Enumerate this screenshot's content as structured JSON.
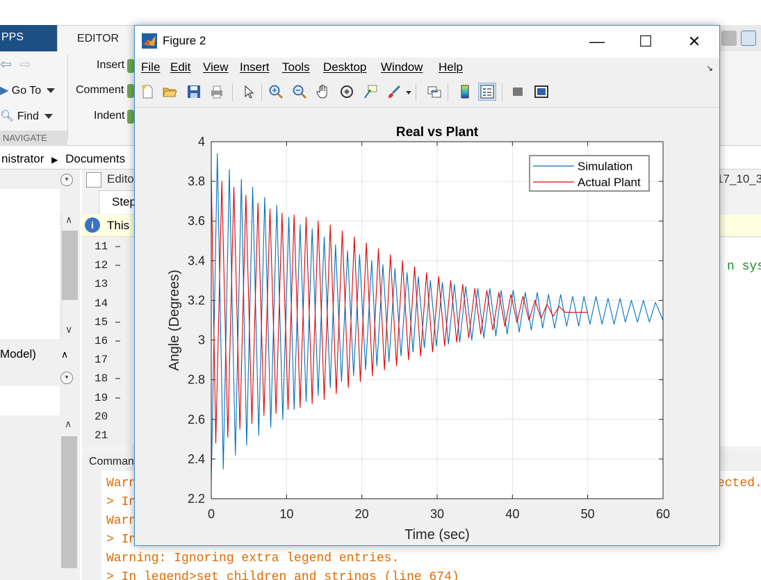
{
  "matlab": {
    "tabs": {
      "apps": "PPS",
      "editor": "EDITOR"
    },
    "ribbon": {
      "goto": "Go To",
      "find": "Find",
      "insert": "Insert",
      "comment": "Comment",
      "indent": "Indent",
      "navigate": "NAVIGATE"
    },
    "address": {
      "segment1": "nistrator",
      "segment2": "Documents"
    },
    "editor": {
      "tab_prefix": "Edito",
      "file_tab": "Step",
      "info_text": "This",
      "right_filename": "17_10_3",
      "right_code": "n sys",
      "line_numbers": [
        "11",
        "12",
        "13",
        "14",
        "15",
        "16",
        "17",
        "18",
        "19",
        "20",
        "21"
      ]
    },
    "left_panel": {
      "model_label": "Model)"
    },
    "command_window": {
      "title": "Comman",
      "lines": [
        {
          "text": "Warn",
          "kind": "warn"
        },
        {
          "text": "> In",
          "kind": "warn"
        },
        {
          "text": "Warn",
          "kind": "warn"
        },
        {
          "text": "> In",
          "kind": "warn"
        },
        {
          "text": "Warning: Ignoring extra legend entries.",
          "kind": "warn"
        },
        {
          "text": "> In legend>set_children_and_strings (line 674)",
          "kind": "warn"
        }
      ],
      "right_fragment": "ected."
    }
  },
  "figure": {
    "title": "Figure 2",
    "window_controls": {
      "minimize": "—",
      "maximize": "☐",
      "close": "✕"
    },
    "menu": [
      "File",
      "Edit",
      "View",
      "Insert",
      "Tools",
      "Desktop",
      "Window",
      "Help"
    ],
    "toolbar_icons": [
      "new-figure-icon",
      "open-file-icon",
      "save-icon",
      "print-icon",
      "select-arrow-icon",
      "zoom-in-icon",
      "zoom-out-icon",
      "pan-icon",
      "rotate-3d-icon",
      "data-cursor-icon",
      "brush-icon",
      "link-plot-icon",
      "colorbar-icon",
      "legend-icon",
      "hide-plot-tools-icon",
      "show-plot-tools-icon"
    ]
  },
  "chart_data": {
    "type": "line",
    "title": "Real vs Plant",
    "xlabel": "Time (sec)",
    "ylabel": "Angle (Degrees)",
    "xlim": [
      0,
      60
    ],
    "ylim": [
      2.2,
      4
    ],
    "xticks": [
      "0",
      "10",
      "20",
      "30",
      "40",
      "50",
      "60"
    ],
    "yticks": [
      "2.2",
      "2.4",
      "2.6",
      "2.8",
      "3",
      "3.2",
      "3.4",
      "3.6",
      "3.8",
      "4"
    ],
    "grid": true,
    "legend_position": "top-right",
    "series": [
      {
        "name": "Simulation",
        "color": "#0072BD",
        "description": "damped oscillation about 3.12, period about 1.55 s",
        "points": [
          [
            0,
            2.28
          ],
          [
            0.8,
            3.94
          ],
          [
            1.6,
            2.35
          ],
          [
            2.4,
            3.86
          ],
          [
            3.2,
            2.42
          ],
          [
            4.0,
            3.81
          ],
          [
            4.7,
            2.47
          ],
          [
            5.5,
            3.77
          ],
          [
            6.3,
            2.52
          ],
          [
            7.1,
            3.72
          ],
          [
            7.9,
            2.56
          ],
          [
            8.7,
            3.68
          ],
          [
            9.5,
            2.6
          ],
          [
            10.3,
            3.62
          ],
          [
            11.0,
            2.65
          ],
          [
            11.8,
            3.58
          ],
          [
            12.6,
            2.69
          ],
          [
            13.4,
            3.56
          ],
          [
            14.2,
            2.72
          ],
          [
            15.0,
            3.52
          ],
          [
            15.8,
            2.76
          ],
          [
            16.5,
            3.48
          ],
          [
            17.3,
            2.79
          ],
          [
            18.1,
            3.45
          ],
          [
            18.9,
            2.82
          ],
          [
            19.7,
            3.43
          ],
          [
            20.5,
            2.85
          ],
          [
            21.3,
            3.4
          ],
          [
            22.0,
            2.87
          ],
          [
            22.8,
            3.38
          ],
          [
            23.6,
            2.89
          ],
          [
            24.4,
            3.36
          ],
          [
            25.2,
            2.92
          ],
          [
            26.0,
            3.34
          ],
          [
            26.8,
            2.94
          ],
          [
            27.5,
            3.32
          ],
          [
            28.3,
            2.96
          ],
          [
            29.1,
            3.3
          ],
          [
            29.9,
            2.97
          ],
          [
            30.7,
            3.29
          ],
          [
            31.5,
            2.98
          ],
          [
            32.3,
            3.28
          ],
          [
            33.0,
            2.99
          ],
          [
            33.8,
            3.27
          ],
          [
            34.6,
            3.0
          ],
          [
            35.4,
            3.26
          ],
          [
            36.2,
            3.01
          ],
          [
            37.0,
            3.26
          ],
          [
            37.8,
            3.02
          ],
          [
            38.5,
            3.25
          ],
          [
            39.3,
            3.03
          ],
          [
            40.1,
            3.25
          ],
          [
            40.9,
            3.04
          ],
          [
            41.7,
            3.24
          ],
          [
            42.5,
            3.05
          ],
          [
            43.3,
            3.24
          ],
          [
            44.0,
            3.06
          ],
          [
            44.8,
            3.23
          ],
          [
            45.6,
            3.06
          ],
          [
            46.4,
            3.23
          ],
          [
            47.2,
            3.07
          ],
          [
            48.0,
            3.22
          ],
          [
            48.8,
            3.07
          ],
          [
            49.5,
            3.22
          ],
          [
            50.3,
            3.08
          ],
          [
            51.1,
            3.22
          ],
          [
            51.9,
            3.08
          ],
          [
            52.7,
            3.21
          ],
          [
            53.5,
            3.08
          ],
          [
            54.3,
            3.21
          ],
          [
            55.0,
            3.09
          ],
          [
            55.8,
            3.2
          ],
          [
            56.6,
            3.09
          ],
          [
            57.4,
            3.2
          ],
          [
            58.2,
            3.09
          ],
          [
            59.0,
            3.19
          ],
          [
            60,
            3.1
          ]
        ]
      },
      {
        "name": "Actual Plant",
        "color": "#E00000",
        "description": "damped oscillation settling near 3.14 and flat after ~46 s",
        "points": [
          [
            0,
            3.84
          ],
          [
            0.6,
            2.48
          ],
          [
            1.4,
            3.8
          ],
          [
            2.2,
            2.51
          ],
          [
            3.0,
            3.77
          ],
          [
            3.8,
            2.55
          ],
          [
            4.6,
            3.73
          ],
          [
            5.4,
            2.58
          ],
          [
            6.2,
            3.69
          ],
          [
            7.0,
            2.62
          ],
          [
            7.8,
            3.66
          ],
          [
            8.6,
            2.63
          ],
          [
            9.4,
            3.64
          ],
          [
            10.2,
            2.65
          ],
          [
            11.0,
            3.63
          ],
          [
            11.8,
            2.66
          ],
          [
            12.6,
            3.62
          ],
          [
            13.4,
            2.68
          ],
          [
            14.2,
            3.6
          ],
          [
            15.0,
            2.7
          ],
          [
            15.8,
            3.58
          ],
          [
            16.6,
            2.73
          ],
          [
            17.4,
            3.55
          ],
          [
            18.2,
            2.76
          ],
          [
            19.0,
            3.52
          ],
          [
            19.8,
            2.79
          ],
          [
            20.6,
            3.49
          ],
          [
            21.4,
            2.82
          ],
          [
            22.2,
            3.46
          ],
          [
            23.0,
            2.85
          ],
          [
            23.8,
            3.43
          ],
          [
            24.6,
            2.87
          ],
          [
            25.4,
            3.4
          ],
          [
            26.2,
            2.9
          ],
          [
            27.0,
            3.37
          ],
          [
            27.8,
            2.92
          ],
          [
            28.6,
            3.34
          ],
          [
            29.4,
            2.94
          ],
          [
            30.2,
            3.32
          ],
          [
            31.0,
            2.97
          ],
          [
            31.8,
            3.3
          ],
          [
            32.6,
            2.99
          ],
          [
            33.4,
            3.28
          ],
          [
            34.2,
            3.01
          ],
          [
            35.0,
            3.26
          ],
          [
            35.8,
            3.03
          ],
          [
            36.6,
            3.25
          ],
          [
            37.4,
            3.05
          ],
          [
            38.2,
            3.24
          ],
          [
            39.0,
            3.07
          ],
          [
            39.8,
            3.23
          ],
          [
            40.6,
            3.09
          ],
          [
            41.4,
            3.22
          ],
          [
            42.2,
            3.1
          ],
          [
            43.0,
            3.2
          ],
          [
            43.8,
            3.11
          ],
          [
            44.6,
            3.18
          ],
          [
            45.4,
            3.12
          ],
          [
            46.2,
            3.17
          ],
          [
            47.0,
            3.14
          ],
          [
            50,
            3.14
          ]
        ]
      }
    ]
  }
}
